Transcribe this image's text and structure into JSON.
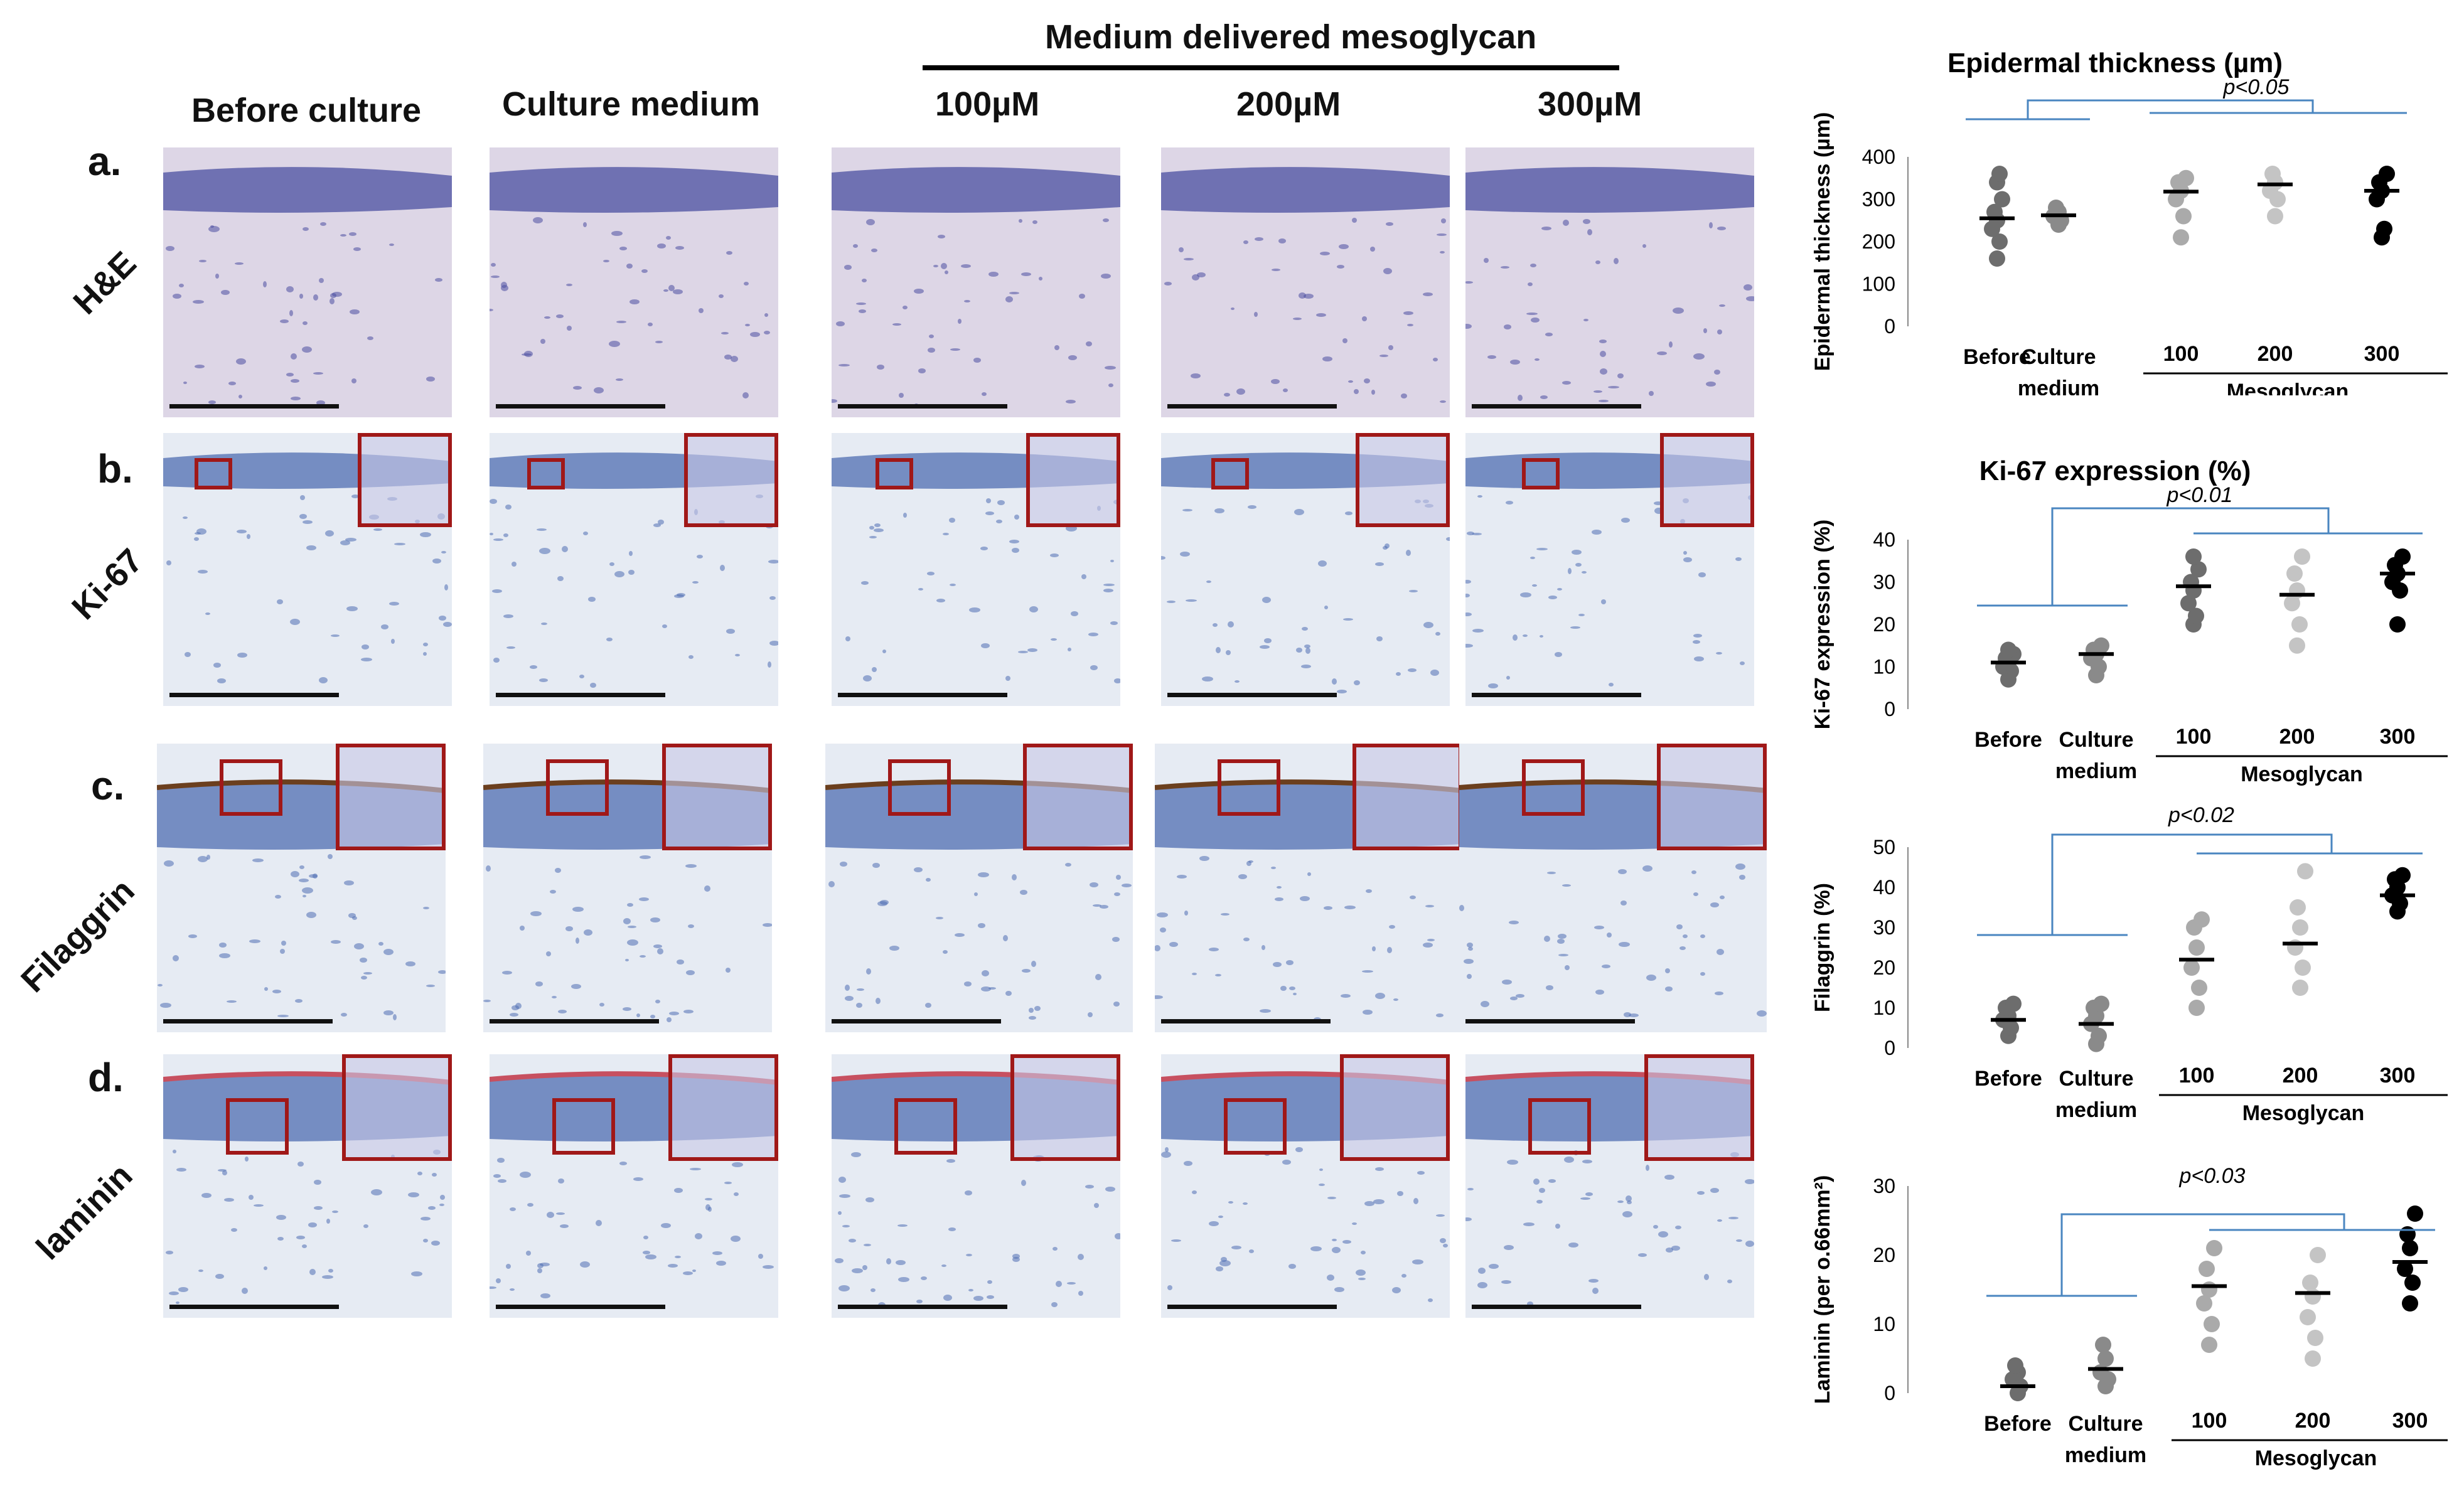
{
  "figure": {
    "group_header": "Medium delivered mesoglycan",
    "columns": [
      "Before culture",
      "Culture medium",
      "100µM",
      "200µM",
      "300µM"
    ],
    "rows": [
      {
        "letter": "a.",
        "stain": "H&E"
      },
      {
        "letter": "b.",
        "stain": "Ki-67"
      },
      {
        "letter": "c.",
        "stain": "Filaggrin"
      },
      {
        "letter": "d.",
        "stain": "laminin"
      }
    ],
    "colors": {
      "inset_border": "#a01818",
      "bracket": "#4a86c0",
      "he_stain": "#3f4aa0",
      "ihc_stain": "#4a6fb8"
    }
  },
  "chart_data": [
    {
      "type": "scatter",
      "title": "Epidermal thickness (µm)",
      "ylabel": "Epidermal thickness (µm)",
      "ylim": [
        0,
        400
      ],
      "yticks": [
        "0",
        "100",
        "200",
        "300",
        "400"
      ],
      "categories": [
        "Before",
        "Culture medium",
        "100",
        "200",
        "300"
      ],
      "group_label": "Mesoglycan",
      "pvalue": "p<0.05",
      "means": [
        255,
        262,
        318,
        335,
        320
      ],
      "points": [
        [
          160,
          200,
          230,
          250,
          270,
          300,
          340,
          360
        ],
        [
          240,
          250,
          260,
          270,
          280
        ],
        [
          210,
          260,
          300,
          320,
          340,
          350
        ],
        [
          260,
          300,
          320,
          340,
          360
        ],
        [
          210,
          230,
          300,
          320,
          340,
          360
        ]
      ],
      "colors": [
        "#6d6d6d",
        "#8a8a8a",
        "#aaaaaa",
        "#c4c4c4",
        "#000000"
      ]
    },
    {
      "type": "scatter",
      "title": "Ki-67 expression (%)",
      "ylabel": "Ki-67 expression (%)",
      "ylim": [
        0,
        40
      ],
      "yticks": [
        "0",
        "10",
        "20",
        "30",
        "40"
      ],
      "categories": [
        "Before",
        "Culture medium",
        "100",
        "200",
        "300"
      ],
      "group_label": "Mesoglycan",
      "pvalue": "p<0.01",
      "means": [
        11,
        13,
        29,
        27,
        32
      ],
      "points": [
        [
          7,
          9,
          10,
          11,
          12,
          13,
          14
        ],
        [
          8,
          10,
          12,
          13,
          14,
          15
        ],
        [
          20,
          22,
          25,
          28,
          30,
          33,
          36
        ],
        [
          15,
          20,
          25,
          28,
          32,
          36
        ],
        [
          20,
          28,
          30,
          32,
          34,
          36
        ]
      ],
      "colors": [
        "#6d6d6d",
        "#8a8a8a",
        "#6d6d6d",
        "#c4c4c4",
        "#000000"
      ]
    },
    {
      "type": "scatter",
      "title": "",
      "ylabel": "Filaggrin (%)",
      "ylim": [
        0,
        50
      ],
      "yticks": [
        "0",
        "10",
        "20",
        "30",
        "40",
        "50"
      ],
      "categories": [
        "Before",
        "Culture medium",
        "100",
        "200",
        "300"
      ],
      "group_label": "Mesoglycan",
      "pvalue": "p<0.02",
      "means": [
        7,
        6,
        22,
        26,
        38
      ],
      "points": [
        [
          3,
          5,
          7,
          8,
          10,
          11
        ],
        [
          1,
          3,
          6,
          8,
          10,
          11
        ],
        [
          10,
          15,
          20,
          25,
          30,
          32
        ],
        [
          15,
          20,
          25,
          30,
          35,
          44
        ],
        [
          34,
          36,
          38,
          40,
          42,
          43
        ]
      ],
      "colors": [
        "#6d6d6d",
        "#8a8a8a",
        "#aaaaaa",
        "#c4c4c4",
        "#000000"
      ]
    },
    {
      "type": "scatter",
      "title": "",
      "ylabel": "Laminin (per o.66mm²)",
      "ylim": [
        0,
        30
      ],
      "yticks": [
        "0",
        "10",
        "20",
        "30"
      ],
      "categories": [
        "Before",
        "Culture medium",
        "100",
        "200",
        "300"
      ],
      "group_label": "Mesoglycan",
      "pvalue": "p<0.03",
      "means": [
        1,
        3.5,
        15.5,
        14.5,
        19
      ],
      "points": [
        [
          0,
          1,
          2,
          3,
          4
        ],
        [
          1,
          2,
          3,
          5,
          7
        ],
        [
          7,
          10,
          13,
          15,
          18,
          21
        ],
        [
          5,
          8,
          11,
          14,
          16,
          20
        ],
        [
          13,
          16,
          18,
          21,
          23,
          26
        ]
      ],
      "colors": [
        "#6d6d6d",
        "#8a8a8a",
        "#aaaaaa",
        "#c4c4c4",
        "#000000"
      ]
    }
  ]
}
